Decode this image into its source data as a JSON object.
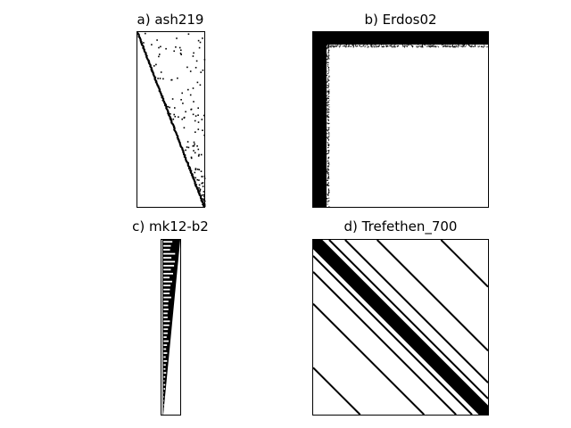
{
  "figure": {
    "panels": [
      {
        "title": "a) ash219",
        "matrix": "ash219",
        "aspect": "tall"
      },
      {
        "title": "b) Erdos02",
        "matrix": "Erdos02",
        "aspect": "square"
      },
      {
        "title": "c) mk12-b2",
        "matrix": "mk12-b2",
        "aspect": "very-tall"
      },
      {
        "title": "d) Trefethen_700",
        "matrix": "Trefethen_700",
        "aspect": "square"
      }
    ]
  },
  "colors": {
    "background": "#ffffff",
    "nonzero": "#000000",
    "frame": "#000000"
  }
}
